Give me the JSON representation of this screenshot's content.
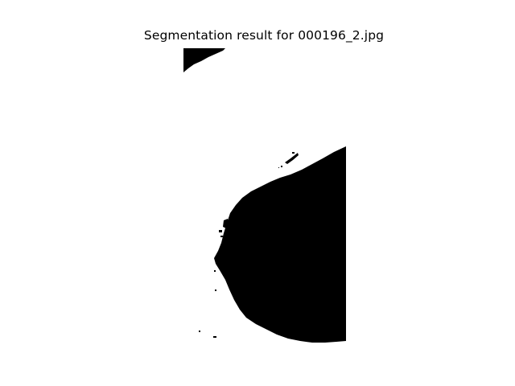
{
  "figure": {
    "title": "Segmentation result for 000196_2.jpg",
    "background_color": "#ffffff",
    "mask_color": "#000000",
    "axes_visible": false
  }
}
